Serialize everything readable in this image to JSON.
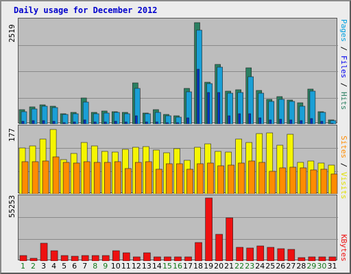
{
  "title": "Daily usage for December 2012",
  "days": [
    "1",
    "2",
    "3",
    "4",
    "5",
    "6",
    "7",
    "8",
    "9",
    "10",
    "11",
    "12",
    "13",
    "14",
    "15",
    "16",
    "17",
    "18",
    "19",
    "20",
    "21",
    "22",
    "23",
    "24",
    "25",
    "26",
    "27",
    "28",
    "29",
    "30",
    "31"
  ],
  "weekend_days": [
    "1",
    "2",
    "8",
    "9",
    "15",
    "16",
    "22",
    "23",
    "29",
    "30"
  ],
  "colors": {
    "pages": "#2b7f61",
    "files": "#1a9fd6",
    "hits": "#1a9fd6",
    "sites": "#ff8c00",
    "visits": "#f5f500",
    "kbytes": "#ee1111",
    "label_pages": "#00a0e0",
    "label_files": "#0000ee",
    "label_hits": "#2b7f61",
    "label_sites": "#ff8c00",
    "label_visits": "#e0e000",
    "label_kbytes": "#ee1111",
    "grid": "#8a8a8a",
    "frame": "#ececec",
    "panel": "#bdbdbd"
  },
  "chart_data": [
    {
      "type": "bar",
      "title": "Daily usage for December 2012",
      "panel": "hits",
      "ymax_label": "2519",
      "ylim": [
        0,
        2519
      ],
      "right_labels": [
        "Pages",
        "Files",
        "Hits"
      ],
      "categories": [
        "1",
        "2",
        "3",
        "4",
        "5",
        "6",
        "7",
        "8",
        "9",
        "10",
        "11",
        "12",
        "13",
        "14",
        "15",
        "16",
        "17",
        "18",
        "19",
        "20",
        "21",
        "22",
        "23",
        "24",
        "25",
        "26",
        "27",
        "28",
        "29",
        "30",
        "31"
      ],
      "series": [
        {
          "name": "Hits",
          "values": [
            355,
            420,
            470,
            440,
            250,
            290,
            650,
            290,
            330,
            310,
            290,
            1020,
            280,
            350,
            230,
            200,
            890,
            2519,
            1040,
            1480,
            810,
            850,
            1395,
            835,
            620,
            680,
            600,
            520,
            870,
            300,
            100
          ]
        },
        {
          "name": "Files",
          "values": [
            300,
            370,
            450,
            400,
            230,
            250,
            540,
            260,
            280,
            290,
            260,
            890,
            260,
            290,
            200,
            170,
            800,
            2330,
            1000,
            1410,
            760,
            790,
            1180,
            760,
            560,
            620,
            560,
            450,
            820,
            285,
            90
          ]
        },
        {
          "name": "Pages",
          "values": [
            60,
            80,
            90,
            70,
            40,
            50,
            110,
            50,
            55,
            60,
            50,
            200,
            50,
            55,
            30,
            30,
            160,
            1370,
            780,
            780,
            200,
            260,
            260,
            150,
            110,
            120,
            100,
            90,
            140,
            60,
            20
          ]
        }
      ]
    },
    {
      "type": "bar",
      "panel": "visits",
      "ymax_label": "177",
      "ylim": [
        0,
        177
      ],
      "right_labels": [
        "Sites",
        "Visits"
      ],
      "categories": [
        "1",
        "2",
        "3",
        "4",
        "5",
        "6",
        "7",
        "8",
        "9",
        "10",
        "11",
        "12",
        "13",
        "14",
        "15",
        "16",
        "17",
        "18",
        "19",
        "20",
        "21",
        "22",
        "23",
        "24",
        "25",
        "26",
        "27",
        "28",
        "29",
        "30",
        "31"
      ],
      "series": [
        {
          "name": "Visits",
          "values": [
            126,
            132,
            150,
            177,
            95,
            112,
            142,
            131,
            117,
            114,
            123,
            128,
            130,
            120,
            113,
            125,
            93,
            128,
            138,
            116,
            114,
            150,
            142,
            165,
            167,
            134,
            163,
            86,
            90,
            85,
            80
          ]
        },
        {
          "name": "Sites",
          "values": [
            88,
            88,
            91,
            102,
            86,
            85,
            88,
            87,
            87,
            88,
            70,
            86,
            88,
            68,
            83,
            82,
            68,
            82,
            85,
            78,
            79,
            85,
            90,
            86,
            63,
            71,
            73,
            72,
            66,
            67,
            55
          ]
        }
      ]
    },
    {
      "type": "bar",
      "panel": "kbytes",
      "ymax_label": "55253",
      "ylim": [
        0,
        55253
      ],
      "right_labels": [
        "KBytes"
      ],
      "categories": [
        "1",
        "2",
        "3",
        "4",
        "5",
        "6",
        "7",
        "8",
        "9",
        "10",
        "11",
        "12",
        "13",
        "14",
        "15",
        "16",
        "17",
        "18",
        "19",
        "20",
        "21",
        "22",
        "23",
        "24",
        "25",
        "26",
        "27",
        "28",
        "29",
        "30",
        "31"
      ],
      "series": [
        {
          "name": "KBytes",
          "values": [
            5000,
            2500,
            15500,
            9000,
            5000,
            4500,
            4700,
            4700,
            4700,
            9000,
            7500,
            3600,
            7500,
            3700,
            3900,
            3900,
            3900,
            16500,
            55253,
            23500,
            38000,
            12000,
            11500,
            13500,
            12000,
            11000,
            10500,
            3000,
            3500,
            3500,
            3500
          ]
        }
      ]
    }
  ]
}
